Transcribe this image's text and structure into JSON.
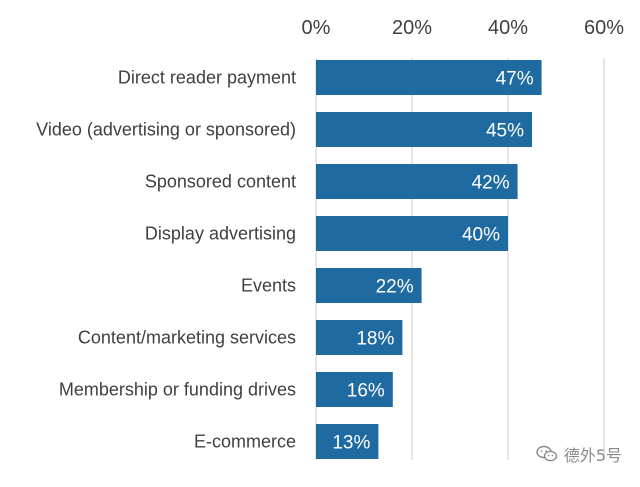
{
  "chart_data": {
    "type": "bar",
    "orientation": "horizontal",
    "title": "",
    "xlabel": "",
    "ylabel": "",
    "xlim": [
      0,
      60
    ],
    "ticks": [
      0,
      20,
      40,
      60
    ],
    "tick_labels": [
      "0%",
      "20%",
      "40%",
      "60%"
    ],
    "categories": [
      "Direct reader payment",
      "Video (advertising or sponsored)",
      "Sponsored content",
      "Display advertising",
      "Events",
      "Content/marketing services",
      "Membership or funding drives",
      "E-commerce"
    ],
    "values": [
      47,
      45,
      42,
      40,
      22,
      18,
      16,
      13
    ],
    "value_labels": [
      "47%",
      "45%",
      "42%",
      "40%",
      "22%",
      "18%",
      "16%",
      "13%"
    ],
    "bar_color": "#1f6aa0",
    "grid": true,
    "grid_color": "#c8c8c8",
    "axis_position": "top",
    "legend": "none"
  },
  "watermark": {
    "text": "德外5号",
    "icon": "wechat-icon"
  }
}
